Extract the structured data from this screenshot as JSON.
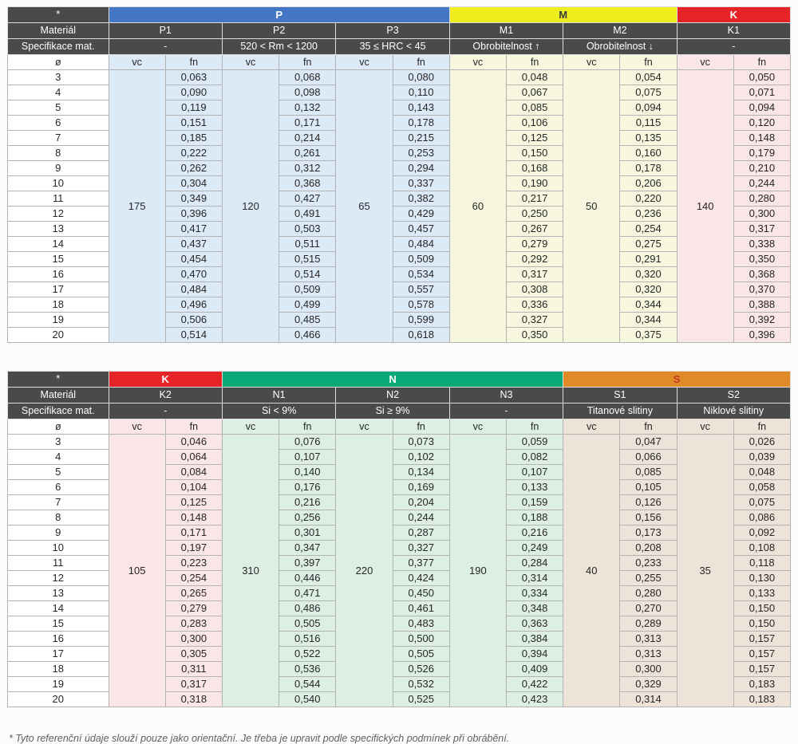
{
  "footnote": "* Tyto referenční údaje slouží pouze jako orientační. Je třeba je upravit podle specifických podmínek při obrábění.",
  "labels": {
    "corner": "*",
    "material": "Materiál",
    "spec": "Specifikace mat.",
    "diameter": "ø",
    "vc": "vc",
    "fn": "fn"
  },
  "diameters": [
    "3",
    "4",
    "5",
    "6",
    "7",
    "8",
    "9",
    "10",
    "11",
    "12",
    "13",
    "14",
    "15",
    "16",
    "17",
    "18",
    "19",
    "20"
  ],
  "colors": {
    "header_dark": "#4a4a4a",
    "p_blue": "#4377c6",
    "m_yellow": "#f0ed1e",
    "k_red": "#e62428",
    "n_green": "#0aa877",
    "s_orange": "#e08b27",
    "s_letter_red": "#c23b26",
    "tint_p": "#dce9f7",
    "tint_m": "#f6f7de",
    "tint_k": "#fae5e7",
    "tint_n": "#ddeee4",
    "tint_s": "#eee3d8"
  },
  "tables": [
    {
      "name": "cutting-data-table-top",
      "groups": [
        {
          "label": "P",
          "color": "#4377c6",
          "text_color": "#ffffff",
          "tint": "#dce9f7",
          "columns": [
            {
              "material": "P1",
              "spec": "-",
              "vc": "175",
              "fn": [
                "0,063",
                "0,090",
                "0,119",
                "0,151",
                "0,185",
                "0,222",
                "0,262",
                "0,304",
                "0,349",
                "0,396",
                "0,417",
                "0,437",
                "0,454",
                "0,470",
                "0,484",
                "0,496",
                "0,506",
                "0,514"
              ]
            },
            {
              "material": "P2",
              "spec": "520 < Rm < 1200",
              "vc": "120",
              "fn": [
                "0,068",
                "0,098",
                "0,132",
                "0,171",
                "0,214",
                "0,261",
                "0,312",
                "0,368",
                "0,427",
                "0,491",
                "0,503",
                "0,511",
                "0,515",
                "0,514",
                "0,509",
                "0,499",
                "0,485",
                "0,466"
              ]
            },
            {
              "material": "P3",
              "spec": "35 ≤ HRC < 45",
              "vc": "65",
              "fn": [
                "0,080",
                "0,110",
                "0,143",
                "0,178",
                "0,215",
                "0,253",
                "0,294",
                "0,337",
                "0,382",
                "0,429",
                "0,457",
                "0,484",
                "0,509",
                "0,534",
                "0,557",
                "0,578",
                "0,599",
                "0,618"
              ]
            }
          ]
        },
        {
          "label": "M",
          "color": "#f0ed1e",
          "text_color": "#3b3b3b",
          "tint": "#f6f7de",
          "columns": [
            {
              "material": "M1",
              "spec": "Obrobitelnost ↑",
              "vc": "60",
              "fn": [
                "0,048",
                "0,067",
                "0,085",
                "0,106",
                "0,125",
                "0,150",
                "0,168",
                "0,190",
                "0,217",
                "0,250",
                "0,267",
                "0,279",
                "0,292",
                "0,317",
                "0,308",
                "0,336",
                "0,327",
                "0,350"
              ]
            },
            {
              "material": "M2",
              "spec": "Obrobitelnost ↓",
              "vc": "50",
              "fn": [
                "0,054",
                "0,075",
                "0,094",
                "0,115",
                "0,135",
                "0,160",
                "0,178",
                "0,206",
                "0,220",
                "0,236",
                "0,254",
                "0,275",
                "0,291",
                "0,320",
                "0,320",
                "0,344",
                "0,344",
                "0,375"
              ]
            }
          ]
        },
        {
          "label": "K",
          "color": "#e62428",
          "text_color": "#ffffff",
          "tint": "#fae5e7",
          "columns": [
            {
              "material": "K1",
              "spec": "-",
              "vc": "140",
              "fn": [
                "0,050",
                "0,071",
                "0,094",
                "0,120",
                "0,148",
                "0,179",
                "0,210",
                "0,244",
                "0,280",
                "0,300",
                "0,317",
                "0,338",
                "0,350",
                "0,368",
                "0,370",
                "0,388",
                "0,392",
                "0,396"
              ]
            }
          ]
        }
      ]
    },
    {
      "name": "cutting-data-table-bottom",
      "groups": [
        {
          "label": "K",
          "color": "#e62428",
          "text_color": "#ffffff",
          "tint": "#fae5e7",
          "columns": [
            {
              "material": "K2",
              "spec": "-",
              "vc": "105",
              "fn": [
                "0,046",
                "0,064",
                "0,084",
                "0,104",
                "0,125",
                "0,148",
                "0,171",
                "0,197",
                "0,223",
                "0,254",
                "0,265",
                "0,279",
                "0,283",
                "0,300",
                "0,305",
                "0,311",
                "0,317",
                "0,318"
              ]
            }
          ]
        },
        {
          "label": "N",
          "color": "#0aa877",
          "text_color": "#ffffff",
          "tint": "#ddeee4",
          "columns": [
            {
              "material": "N1",
              "spec": "Si < 9%",
              "vc": "310",
              "fn": [
                "0,076",
                "0,107",
                "0,140",
                "0,176",
                "0,216",
                "0,256",
                "0,301",
                "0,347",
                "0,397",
                "0,446",
                "0,471",
                "0,486",
                "0,505",
                "0,516",
                "0,522",
                "0,536",
                "0,544",
                "0,540"
              ]
            },
            {
              "material": "N2",
              "spec": "Si ≥ 9%",
              "vc": "220",
              "fn": [
                "0,073",
                "0,102",
                "0,134",
                "0,169",
                "0,204",
                "0,244",
                "0,287",
                "0,327",
                "0,377",
                "0,424",
                "0,450",
                "0,461",
                "0,483",
                "0,500",
                "0,505",
                "0,526",
                "0,532",
                "0,525"
              ]
            },
            {
              "material": "N3",
              "spec": "-",
              "vc": "190",
              "fn": [
                "0,059",
                "0,082",
                "0,107",
                "0,133",
                "0,159",
                "0,188",
                "0,216",
                "0,249",
                "0,284",
                "0,314",
                "0,334",
                "0,348",
                "0,363",
                "0,384",
                "0,394",
                "0,409",
                "0,422",
                "0,423"
              ]
            }
          ]
        },
        {
          "label": "S",
          "color": "#e08b27",
          "text_color": "#c23b26",
          "tint": "#eee3d8",
          "columns": [
            {
              "material": "S1",
              "spec": "Titanové slitiny",
              "vc": "40",
              "fn": [
                "0,047",
                "0,066",
                "0,085",
                "0,105",
                "0,126",
                "0,156",
                "0,173",
                "0,208",
                "0,233",
                "0,255",
                "0,280",
                "0,270",
                "0,289",
                "0,313",
                "0,313",
                "0,300",
                "0,329",
                "0,314"
              ]
            },
            {
              "material": "S2",
              "spec": "Niklové slitiny",
              "vc": "35",
              "fn": [
                "0,026",
                "0,039",
                "0,048",
                "0,058",
                "0,075",
                "0,086",
                "0,092",
                "0,108",
                "0,118",
                "0,130",
                "0,133",
                "0,150",
                "0,150",
                "0,157",
                "0,157",
                "0,157",
                "0,183",
                "0,183"
              ]
            }
          ]
        }
      ]
    }
  ]
}
